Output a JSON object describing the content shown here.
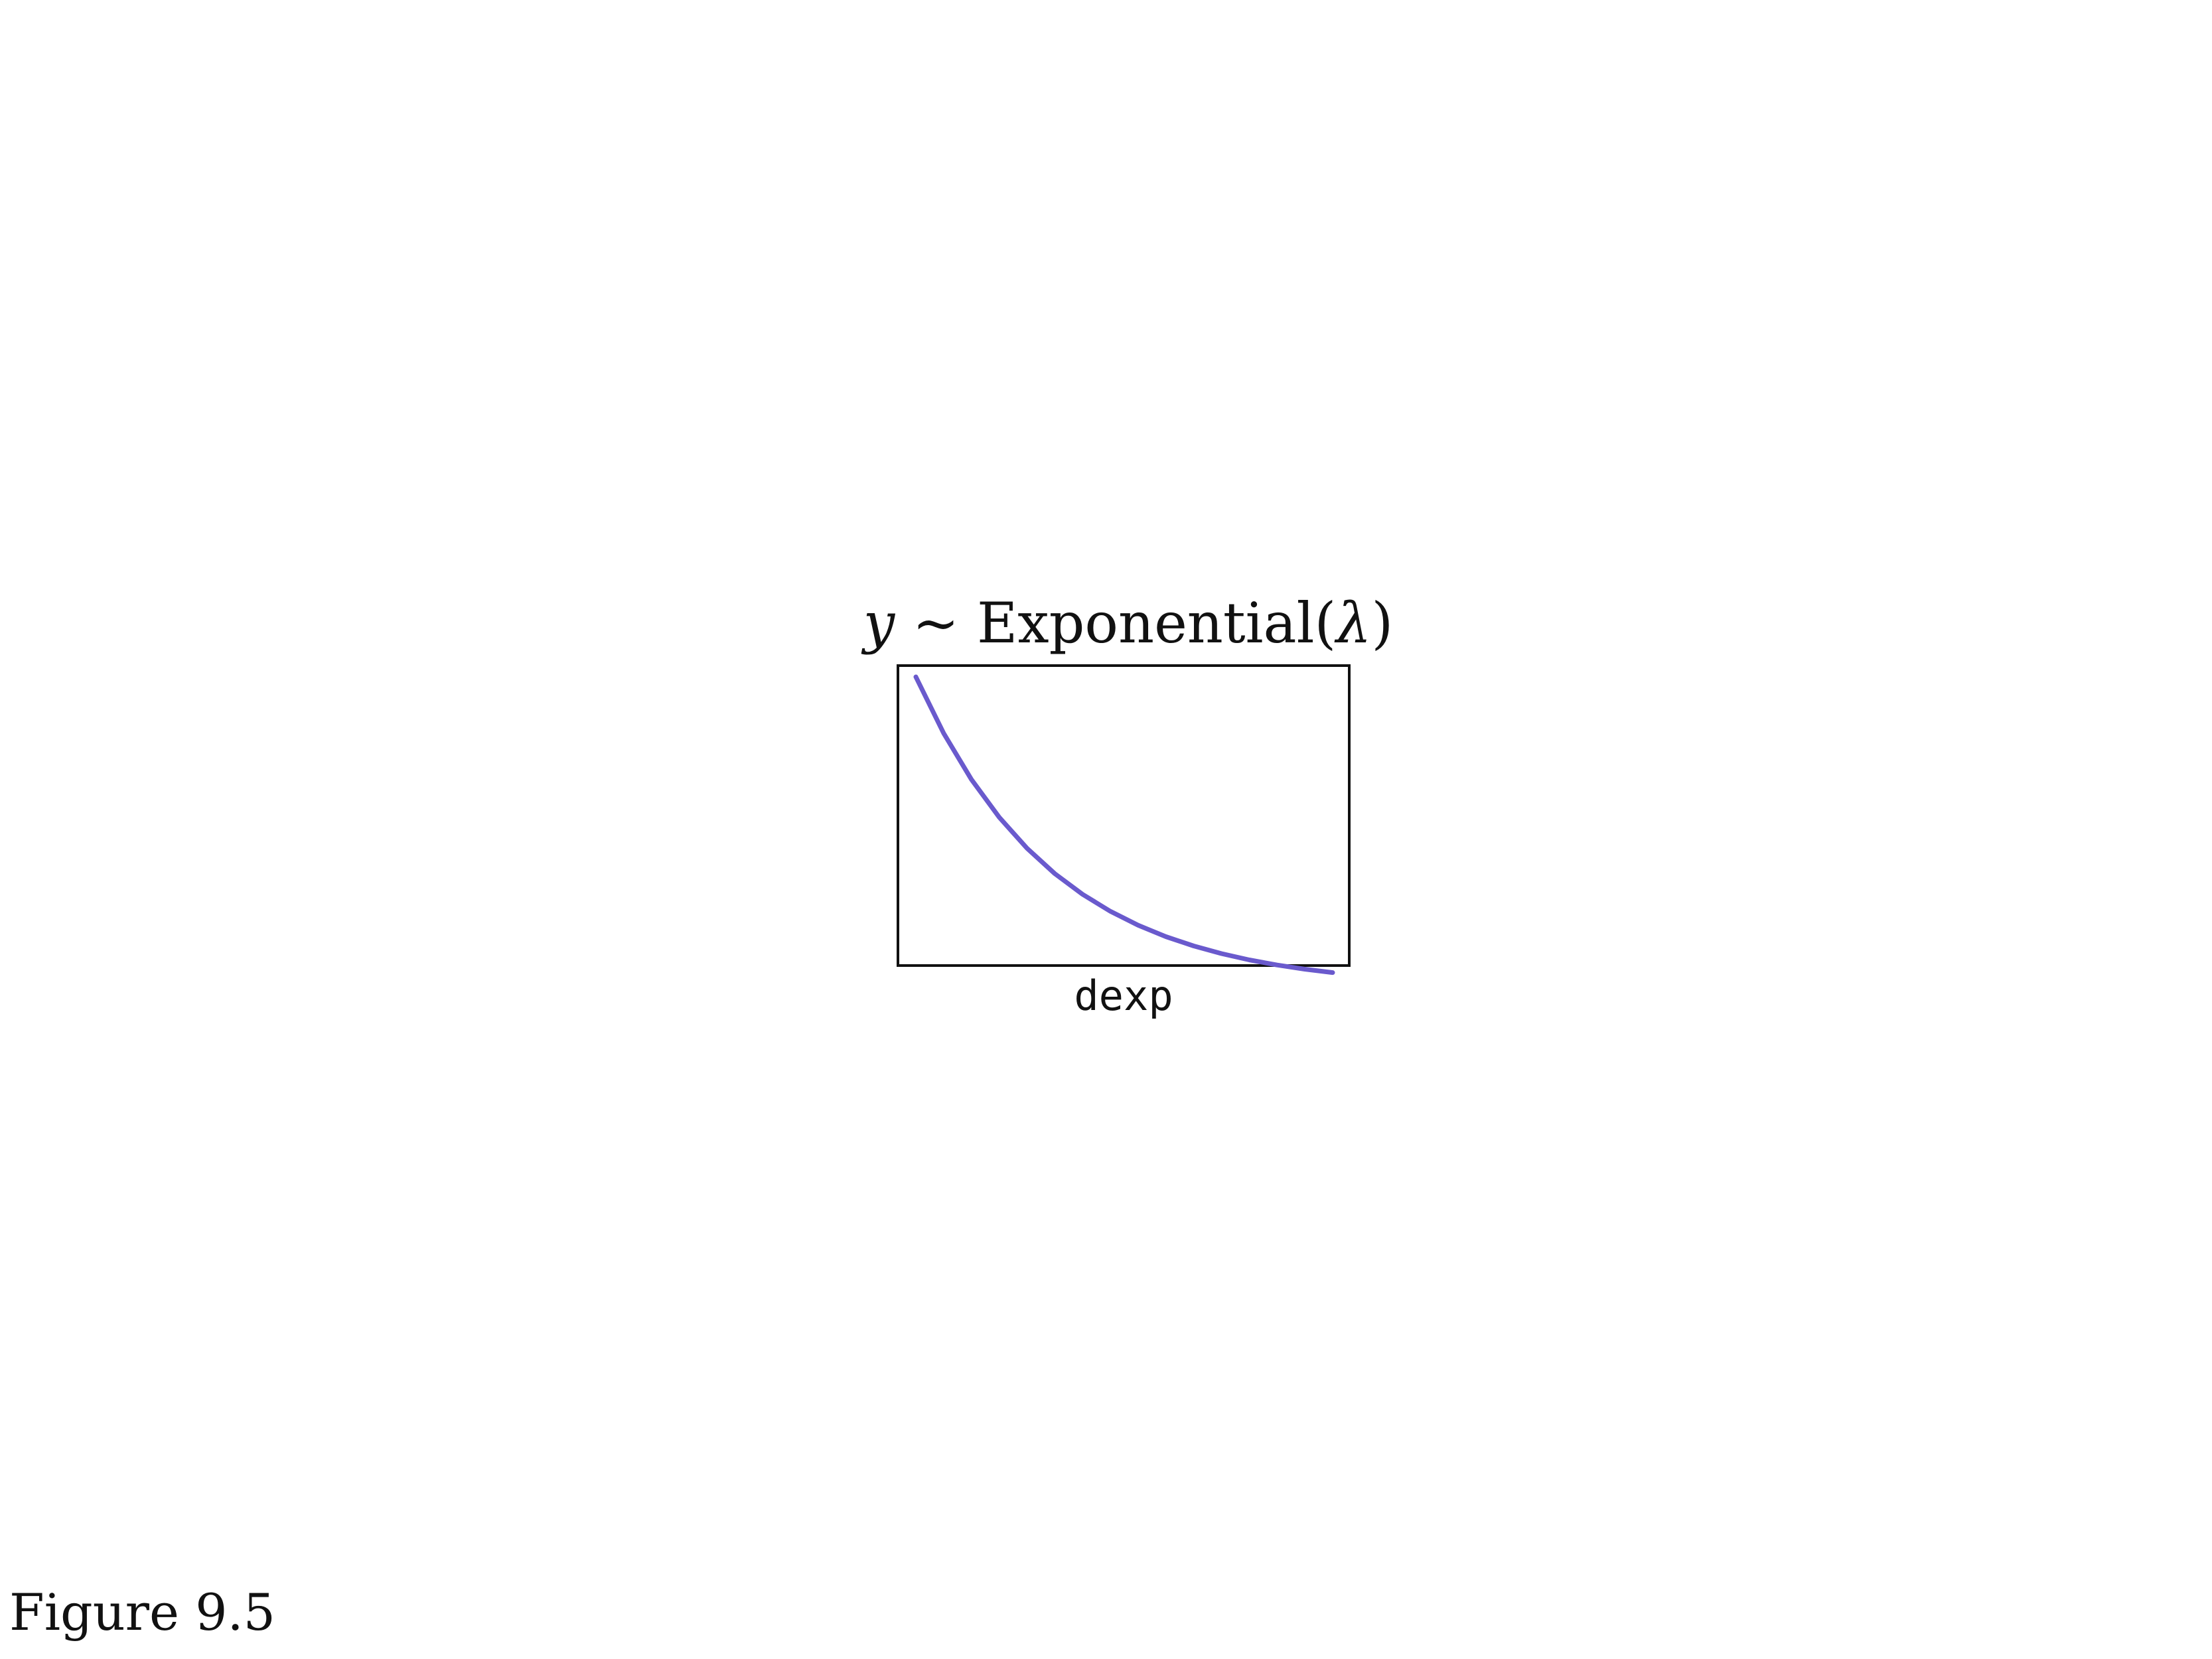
{
  "chart_data": {
    "type": "line",
    "title_parts": [
      "y",
      " ~ Exponential(",
      "λ",
      ")"
    ],
    "xlabel": "dexp",
    "ylabel": "",
    "axes_visible": false,
    "grid": false,
    "legend": "none",
    "series": [
      {
        "color": "#6a5acd",
        "x": [
          0.0,
          0.2,
          0.4,
          0.6,
          0.8,
          1.0,
          1.2,
          1.4,
          1.6,
          1.8,
          2.0,
          2.2,
          2.4,
          2.6,
          2.8,
          3.0
        ],
        "y": [
          1.0,
          0.8187,
          0.6703,
          0.5488,
          0.4493,
          0.3679,
          0.3012,
          0.2466,
          0.2019,
          0.1653,
          0.1353,
          0.1108,
          0.0907,
          0.0743,
          0.0608,
          0.0498
        ]
      }
    ],
    "xlim": [
      0,
      3
    ],
    "ylim": [
      0,
      1
    ]
  },
  "caption": "Figure 9.5"
}
